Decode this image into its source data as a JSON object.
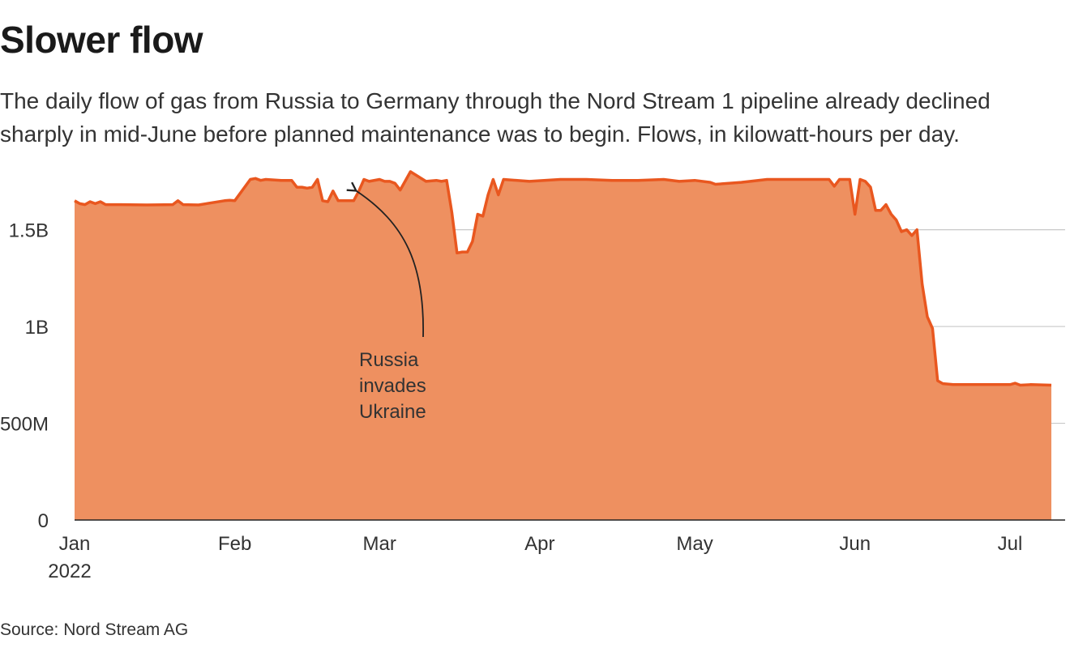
{
  "title": "Slower flow",
  "subtitle": "The daily flow of gas from Russia to Germany through the Nord Stream 1 pipeline already declined sharply in mid-June before planned maintenance was to begin. Flows, in kilowatt-hours per day.",
  "source": "Source: Nord Stream AG",
  "colors": {
    "fill": "#ee9060",
    "line": "#e9571f",
    "grid": "#c8c8c8",
    "text": "#333333"
  },
  "chart_data": {
    "type": "area",
    "xlabel": "",
    "ylabel": "",
    "ylim": [
      0,
      1850000000
    ],
    "yticks": [
      {
        "value": 0,
        "label": "0"
      },
      {
        "value": 500000000,
        "label": "500M"
      },
      {
        "value": 1000000000,
        "label": "1B"
      },
      {
        "value": 1500000000,
        "label": "1.5B"
      }
    ],
    "xticks": [
      {
        "date": "2022-01-01",
        "label": "Jan",
        "sublabel": "2022"
      },
      {
        "date": "2022-02-01",
        "label": "Feb",
        "sublabel": ""
      },
      {
        "date": "2022-03-01",
        "label": "Mar",
        "sublabel": ""
      },
      {
        "date": "2022-04-01",
        "label": "Apr",
        "sublabel": ""
      },
      {
        "date": "2022-05-01",
        "label": "May",
        "sublabel": ""
      },
      {
        "date": "2022-06-01",
        "label": "Jun",
        "sublabel": ""
      },
      {
        "date": "2022-07-01",
        "label": "Jul",
        "sublabel": ""
      }
    ],
    "grid": true,
    "series": [
      {
        "x": [
          "2022-01-01",
          "2022-01-02",
          "2022-01-03",
          "2022-01-04",
          "2022-01-05",
          "2022-01-06",
          "2022-01-07",
          "2022-01-10",
          "2022-01-15",
          "2022-01-20",
          "2022-01-21",
          "2022-01-22",
          "2022-01-25",
          "2022-01-30",
          "2022-01-31",
          "2022-02-01",
          "2022-02-04",
          "2022-02-05",
          "2022-02-06",
          "2022-02-07",
          "2022-02-10",
          "2022-02-12",
          "2022-02-13",
          "2022-02-14",
          "2022-02-15",
          "2022-02-16",
          "2022-02-17",
          "2022-02-18",
          "2022-02-19",
          "2022-02-20",
          "2022-02-21",
          "2022-02-24",
          "2022-02-25",
          "2022-02-26",
          "2022-02-27",
          "2022-03-01",
          "2022-03-02",
          "2022-03-03",
          "2022-03-04",
          "2022-03-05",
          "2022-03-07",
          "2022-03-10",
          "2022-03-12",
          "2022-03-13",
          "2022-03-14",
          "2022-03-15",
          "2022-03-16",
          "2022-03-17",
          "2022-03-18",
          "2022-03-19",
          "2022-03-20",
          "2022-03-21",
          "2022-03-22",
          "2022-03-23",
          "2022-03-24",
          "2022-03-25",
          "2022-03-30",
          "2022-04-05",
          "2022-04-10",
          "2022-04-15",
          "2022-04-20",
          "2022-04-25",
          "2022-04-28",
          "2022-05-01",
          "2022-05-04",
          "2022-05-05",
          "2022-05-10",
          "2022-05-15",
          "2022-05-20",
          "2022-05-25",
          "2022-05-27",
          "2022-05-28",
          "2022-05-29",
          "2022-05-30",
          "2022-05-31",
          "2022-06-01",
          "2022-06-02",
          "2022-06-03",
          "2022-06-04",
          "2022-06-05",
          "2022-06-06",
          "2022-06-07",
          "2022-06-08",
          "2022-06-09",
          "2022-06-10",
          "2022-06-11",
          "2022-06-12",
          "2022-06-13",
          "2022-06-14",
          "2022-06-15",
          "2022-06-16",
          "2022-06-17",
          "2022-06-18",
          "2022-06-20",
          "2022-06-25",
          "2022-06-30",
          "2022-07-01",
          "2022-07-02",
          "2022-07-03",
          "2022-07-05",
          "2022-07-09"
        ],
        "y": [
          1650000000,
          1635000000,
          1630000000,
          1645000000,
          1635000000,
          1645000000,
          1630000000,
          1630000000,
          1628000000,
          1630000000,
          1650000000,
          1630000000,
          1628000000,
          1650000000,
          1652000000,
          1650000000,
          1760000000,
          1765000000,
          1755000000,
          1760000000,
          1755000000,
          1755000000,
          1720000000,
          1720000000,
          1715000000,
          1720000000,
          1760000000,
          1650000000,
          1645000000,
          1700000000,
          1650000000,
          1650000000,
          1700000000,
          1760000000,
          1750000000,
          1760000000,
          1750000000,
          1750000000,
          1740000000,
          1705000000,
          1800000000,
          1750000000,
          1755000000,
          1750000000,
          1755000000,
          1590000000,
          1380000000,
          1385000000,
          1385000000,
          1440000000,
          1580000000,
          1570000000,
          1680000000,
          1760000000,
          1680000000,
          1760000000,
          1750000000,
          1760000000,
          1760000000,
          1755000000,
          1755000000,
          1760000000,
          1750000000,
          1755000000,
          1745000000,
          1735000000,
          1745000000,
          1760000000,
          1760000000,
          1760000000,
          1760000000,
          1725000000,
          1760000000,
          1760000000,
          1760000000,
          1580000000,
          1760000000,
          1750000000,
          1720000000,
          1600000000,
          1600000000,
          1630000000,
          1580000000,
          1550000000,
          1490000000,
          1500000000,
          1470000000,
          1500000000,
          1220000000,
          1050000000,
          990000000,
          720000000,
          705000000,
          700000000,
          700000000,
          700000000,
          700000000,
          707000000,
          697000000,
          700000000,
          697000000
        ]
      }
    ],
    "annotations": [
      {
        "label_lines": [
          "Russia",
          "invades",
          "Ukraine"
        ],
        "target_date": "2022-02-24"
      }
    ]
  }
}
